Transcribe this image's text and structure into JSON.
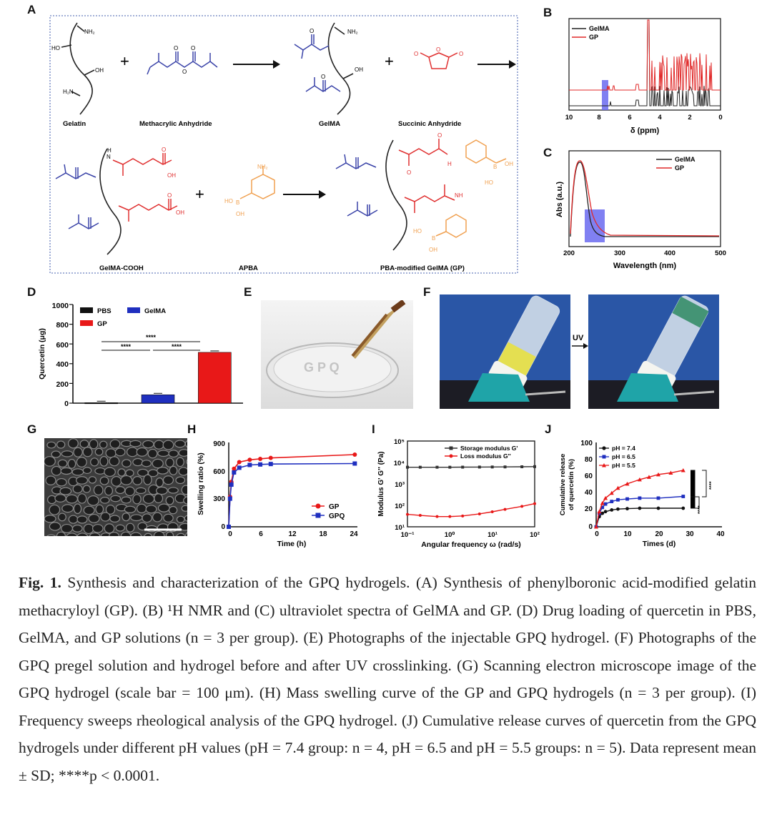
{
  "panels": {
    "A": {
      "letter": "A",
      "labels": {
        "gelatin": "Gelatin",
        "methacrylic_anhydride": "Methacrylic Anhydride",
        "gelma": "GelMA",
        "succinic_anhydride": "Succinic Anhydride",
        "gelma_cooh": "GelMA-COOH",
        "apba": "APBA",
        "gp": "PBA-modified GelMA (GP)"
      },
      "atoms": {
        "nh2": "NH₂",
        "ho": "HO",
        "oh": "OH",
        "h2n": "H₂N",
        "o": "O",
        "n": "N",
        "h": "H",
        "b": "B",
        "nh": "NH"
      },
      "plus": "+",
      "colors": {
        "methacryl": "#3a43a8",
        "succinic": "#e03030",
        "apba": "#f0a050",
        "backbone": "#222222",
        "frame": "#6a7fbf"
      }
    },
    "B": {
      "letter": "B",
      "legend": [
        "GelMA",
        "GP"
      ],
      "xlabel": "δ (ppm)",
      "xticks": [
        "10",
        "8",
        "6",
        "4",
        "2",
        "0"
      ],
      "colors": {
        "GelMA": "#222222",
        "GP": "#e02828",
        "highlight": "#6a6af0"
      }
    },
    "C": {
      "letter": "C",
      "legend": [
        "GelMA",
        "GP"
      ],
      "xlabel": "Wavelength (nm)",
      "ylabel": "Abs (a.u.)",
      "xticks": [
        "200",
        "300",
        "400",
        "500"
      ],
      "colors": {
        "GelMA": "#222222",
        "GP": "#e02828",
        "highlight": "#6a6af0"
      }
    },
    "D": {
      "letter": "D",
      "ylabel": "Quercetin (μg)",
      "yticks": [
        "1000",
        "800",
        "600",
        "400",
        "200",
        "0"
      ],
      "legend": [
        "PBS",
        "GelMA",
        "GP"
      ],
      "significance": [
        "****",
        "****",
        "****"
      ],
      "colors": {
        "PBS": "#111111",
        "GelMA": "#1f2fbf",
        "GP": "#e81818"
      }
    },
    "E": {
      "letter": "E"
    },
    "F": {
      "letter": "F",
      "arrow_label": "UV"
    },
    "G": {
      "letter": "G"
    },
    "H": {
      "letter": "H",
      "ylabel": "Swelling ratio (%)",
      "xlabel": "Time (h)",
      "xticks": [
        "0",
        "6",
        "12",
        "18",
        "24"
      ],
      "yticks": [
        "900",
        "600",
        "300",
        "0"
      ],
      "legend": [
        "GP",
        "GPQ"
      ],
      "colors": {
        "GP": "#e81818",
        "GPQ": "#1f2fbf"
      }
    },
    "I": {
      "letter": "I",
      "ylabel": "Modulus G' G'' (Pa)",
      "xlabel": "Angular frequency ω (rad/s)",
      "yticks": [
        "10⁵",
        "10⁴",
        "10³",
        "10²",
        "10¹"
      ],
      "xticks": [
        "10⁻¹",
        "10⁰",
        "10¹",
        "10²"
      ],
      "legend": [
        "Storage modulus G'",
        "Loss modulus G''"
      ],
      "colors": {
        "storage": "#333333",
        "loss": "#e81818"
      }
    },
    "J": {
      "letter": "J",
      "ylabel": "Cumulative release of quercetin (%)",
      "xlabel": "Times (d)",
      "xticks": [
        "0",
        "10",
        "20",
        "30",
        "40"
      ],
      "yticks": [
        "100",
        "80",
        "60",
        "40",
        "20",
        "0"
      ],
      "legend": [
        "pH = 7.4",
        "pH = 6.5",
        "pH = 5.5"
      ],
      "significance": [
        "****",
        "****",
        "****"
      ],
      "colors": {
        "pH74": "#111111",
        "pH65": "#1f2fbf",
        "pH55": "#e81818"
      }
    }
  },
  "caption": {
    "lead": "Fig. 1.",
    "text": " Synthesis and characterization of the GPQ hydrogels. (A) Synthesis of phenylboronic acid-modified gelatin methacryloyl (GP). (B) ¹H NMR and (C) ultraviolet spectra of GelMA and GP. (D) Drug loading of quercetin in PBS, GelMA, and GP solutions (n = 3 per group). (E) Photographs of the injectable GPQ hydrogel. (F) Photographs of the GPQ pregel solution and hydrogel before and after UV crosslinking. (G) Scanning electron microscope image of the GPQ hydrogel (scale bar = 100 μm). (H) Mass swelling curve of the GP and GPQ hydrogels (n = 3 per group). (I) Frequency sweeps rheological analysis of the GPQ hydrogel. (J) Cumulative release curves of quercetin from the GPQ hydrogels under different pH values (pH = 7.4 group: n = 4, pH = 6.5 and pH = 5.5 groups: n = 5). Data represent mean ± SD; ****p < 0.0001."
  },
  "chart_data": [
    {
      "panel": "D",
      "type": "bar",
      "categories": [
        "PBS",
        "GelMA",
        "GP"
      ],
      "values": [
        5,
        85,
        515
      ],
      "ylabel": "Quercetin (μg)",
      "ylim": [
        0,
        1000
      ],
      "legend": "top-left"
    },
    {
      "panel": "H",
      "type": "line",
      "xlabel": "Time (h)",
      "ylabel": "Swelling ratio (%)",
      "xlim": [
        0,
        24.5
      ],
      "ylim": [
        0,
        900
      ],
      "legend": "bottom-right",
      "series": [
        {
          "name": "GP",
          "x": [
            0,
            0.25,
            0.5,
            1,
            2,
            4,
            6,
            8,
            24
          ],
          "y": [
            0,
            320,
            480,
            620,
            690,
            715,
            725,
            735,
            770
          ]
        },
        {
          "name": "GPQ",
          "x": [
            0,
            0.25,
            0.5,
            1,
            2,
            4,
            6,
            8,
            24
          ],
          "y": [
            0,
            300,
            450,
            580,
            630,
            660,
            665,
            670,
            675
          ]
        }
      ]
    },
    {
      "panel": "I",
      "type": "line",
      "xlabel": "Angular frequency ω (rad/s)",
      "ylabel": "Modulus G' G'' (Pa)",
      "xscale": "log",
      "yscale": "log",
      "xlim": [
        0.1,
        100
      ],
      "ylim": [
        10,
        100000
      ],
      "legend": "top-right",
      "series": [
        {
          "name": "Storage modulus G'",
          "x": [
            0.1,
            0.2,
            0.5,
            1,
            2,
            5,
            10,
            20,
            50,
            100
          ],
          "y": [
            6000,
            6000,
            6000,
            6000,
            6050,
            6100,
            6150,
            6200,
            6300,
            6400
          ]
        },
        {
          "name": "Loss modulus G''",
          "x": [
            0.1,
            0.2,
            0.5,
            1,
            2,
            5,
            10,
            20,
            50,
            100
          ],
          "y": [
            38,
            34,
            30,
            30,
            32,
            40,
            50,
            65,
            90,
            120
          ]
        }
      ]
    },
    {
      "panel": "J",
      "type": "line",
      "xlabel": "Times (d)",
      "ylabel": "Cumulative release of quercetin (%)",
      "xlim": [
        0,
        40
      ],
      "ylim": [
        0,
        100
      ],
      "legend": "top-left",
      "series": [
        {
          "name": "pH = 7.4",
          "x": [
            0,
            1,
            2,
            3,
            5,
            7,
            10,
            14,
            20,
            28
          ],
          "y": [
            0,
            12,
            16,
            18,
            20,
            21,
            21.5,
            22,
            22,
            22
          ]
        },
        {
          "name": "pH = 6.5",
          "x": [
            0,
            1,
            2,
            3,
            5,
            7,
            10,
            14,
            20,
            28
          ],
          "y": [
            0,
            16,
            23,
            27,
            30,
            32,
            33,
            34,
            34,
            36
          ]
        },
        {
          "name": "pH = 5.5",
          "x": [
            0,
            1,
            2,
            3,
            5,
            7,
            10,
            14,
            17,
            20,
            24,
            28
          ],
          "y": [
            0,
            18,
            28,
            34,
            40,
            46,
            51,
            56,
            59,
            62,
            64,
            67
          ]
        }
      ]
    }
  ]
}
